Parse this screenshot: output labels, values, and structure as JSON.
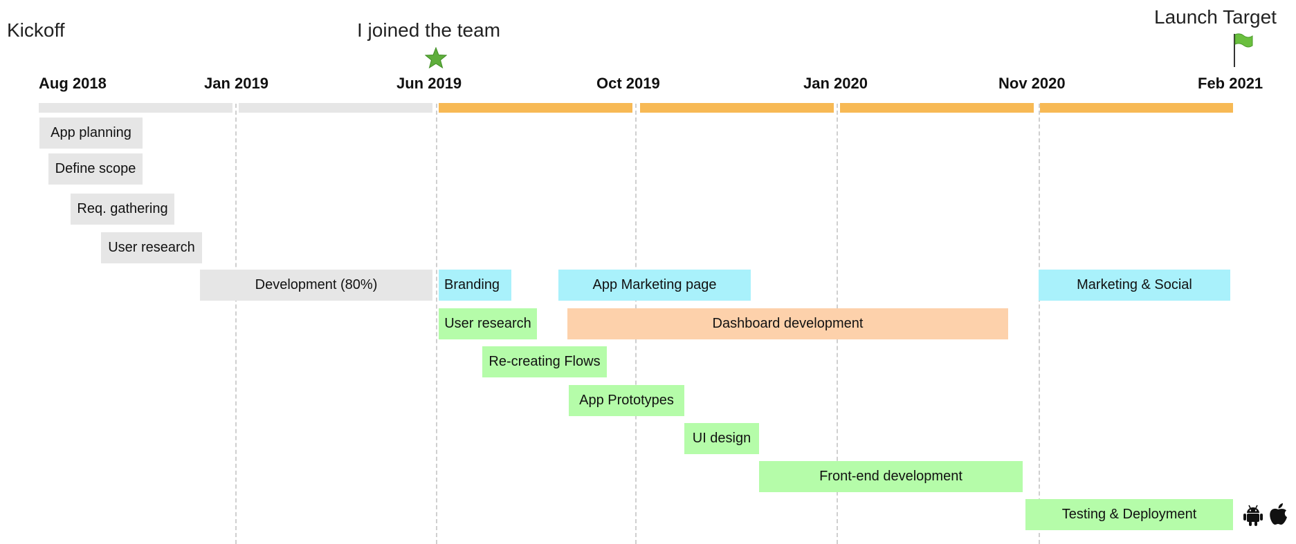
{
  "milestones": {
    "kickoff": "Kickoff",
    "joined": "I joined the team",
    "launch": "Launch Target"
  },
  "dates": [
    "Aug 2018",
    "Jan 2019",
    "Jun 2019",
    "Oct 2019",
    "Jan 2020",
    "Nov 2020",
    "Feb 2021"
  ],
  "tasks": {
    "app_planning": "App planning",
    "define_scope": "Define scope",
    "req_gathering": "Req. gathering",
    "user_research_1": "User research",
    "development": "Development (80%)",
    "branding": "Branding",
    "app_marketing_page": "App Marketing page",
    "marketing_social": "Marketing & Social",
    "user_research_2": "User research",
    "dashboard_development": "Dashboard development",
    "recreating_flows": "Re-creating Flows",
    "app_prototypes": "App Prototypes",
    "ui_design": "UI design",
    "frontend_development": "Front-end development",
    "testing_deployment": "Testing & Deployment"
  },
  "colors": {
    "past": "#e6e6e6",
    "active": "#f7b955",
    "marketing": "#a9f1fb",
    "dashboard": "#fdd1ab",
    "design": "#b5fca9",
    "star": "#5fae3c",
    "flag": "#6abf3e"
  },
  "icons": {
    "joined": "star-icon",
    "launch": "flag-icon",
    "platforms": [
      "android-icon",
      "apple-icon"
    ]
  }
}
